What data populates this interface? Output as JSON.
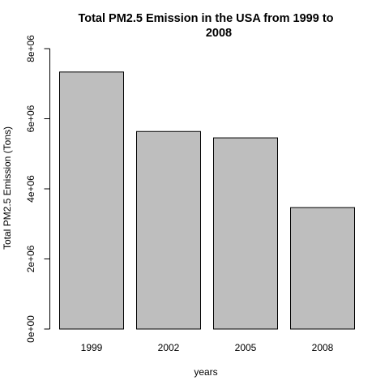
{
  "chart_data": {
    "type": "bar",
    "title": "Total PM2.5 Emission in the USA from 1999 to 2008",
    "title_lines": [
      "Total PM2.5 Emission in the USA from 1999 to",
      "2008"
    ],
    "xlabel": "years",
    "ylabel": "Total PM2.5 Emission (Tons)",
    "categories": [
      "1999",
      "2002",
      "2005",
      "2008"
    ],
    "values": [
      7332967,
      5635780,
      5454703,
      3464206
    ],
    "ylim": [
      0,
      8000000
    ],
    "yticks": [
      0,
      2000000,
      4000000,
      6000000,
      8000000
    ],
    "ytick_labels": [
      "0e+00",
      "2e+06",
      "4e+06",
      "6e+06",
      "8e+06"
    ],
    "grid": false,
    "legend": "none",
    "colors": {
      "bar_fill": "#bebebe",
      "bar_stroke": "#000000",
      "axis": "#000000",
      "background": "#ffffff"
    }
  }
}
